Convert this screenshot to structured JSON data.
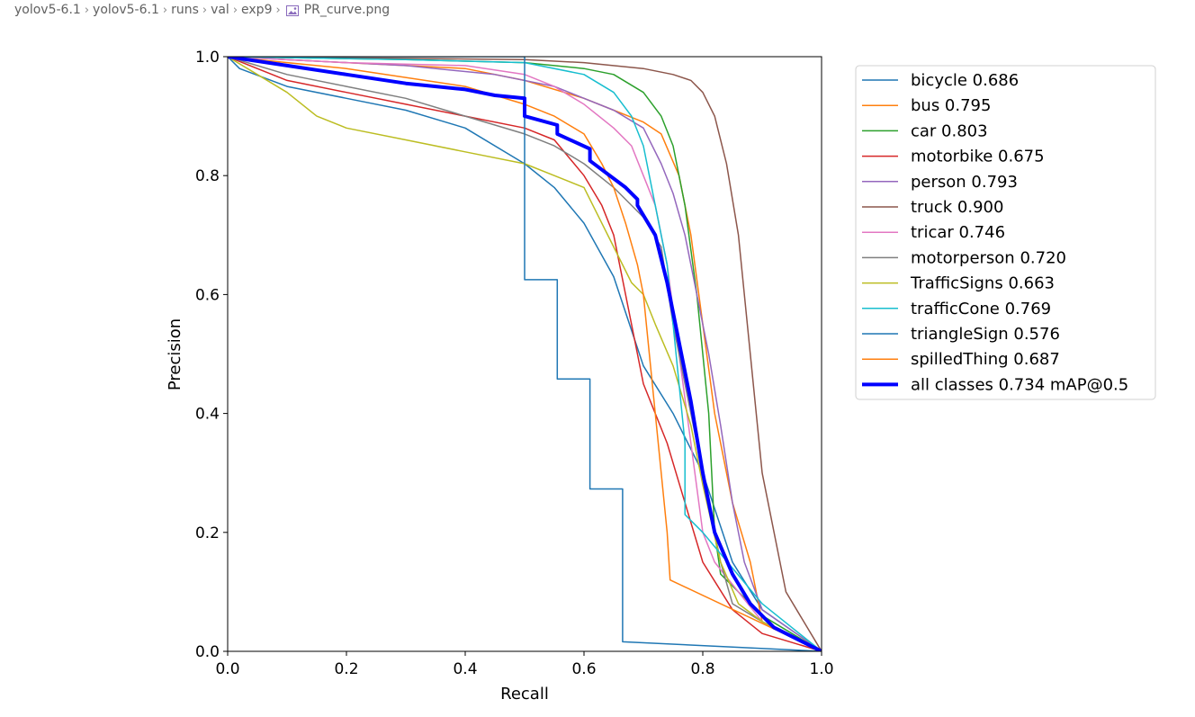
{
  "breadcrumb": {
    "items": [
      "yolov5-6.1",
      "yolov5-6.1",
      "runs",
      "val",
      "exp9"
    ],
    "file": "PR_curve.png",
    "file_icon": "image-file-icon"
  },
  "chart_data": {
    "type": "line",
    "xlabel": "Recall",
    "ylabel": "Precision",
    "xlim": [
      0,
      1
    ],
    "ylim": [
      0,
      1
    ],
    "xticks": [
      "0.0",
      "0.2",
      "0.4",
      "0.6",
      "0.8",
      "1.0"
    ],
    "yticks": [
      "0.0",
      "0.2",
      "0.4",
      "0.6",
      "0.8",
      "1.0"
    ],
    "grid": false,
    "legend_position": "outside-right-top",
    "series": [
      {
        "name": "bicycle 0.686",
        "color": "#1f77b4",
        "width": 1.5,
        "points": [
          [
            0,
            1
          ],
          [
            0.02,
            0.98
          ],
          [
            0.1,
            0.95
          ],
          [
            0.2,
            0.93
          ],
          [
            0.3,
            0.91
          ],
          [
            0.4,
            0.88
          ],
          [
            0.5,
            0.82
          ],
          [
            0.55,
            0.78
          ],
          [
            0.6,
            0.72
          ],
          [
            0.65,
            0.63
          ],
          [
            0.7,
            0.48
          ],
          [
            0.75,
            0.4
          ],
          [
            0.8,
            0.3
          ],
          [
            0.85,
            0.15
          ],
          [
            0.9,
            0.07
          ],
          [
            1.0,
            0
          ]
        ]
      },
      {
        "name": "bus 0.795",
        "color": "#ff7f0e",
        "width": 1.5,
        "points": [
          [
            0,
            1
          ],
          [
            0.2,
            0.99
          ],
          [
            0.4,
            0.98
          ],
          [
            0.5,
            0.96
          ],
          [
            0.6,
            0.93
          ],
          [
            0.65,
            0.91
          ],
          [
            0.7,
            0.89
          ],
          [
            0.73,
            0.87
          ],
          [
            0.76,
            0.8
          ],
          [
            0.78,
            0.7
          ],
          [
            0.8,
            0.55
          ],
          [
            0.82,
            0.4
          ],
          [
            0.85,
            0.25
          ],
          [
            0.88,
            0.15
          ],
          [
            0.9,
            0.05
          ],
          [
            1.0,
            0
          ]
        ]
      },
      {
        "name": "car 0.803",
        "color": "#2ca02c",
        "width": 1.5,
        "points": [
          [
            0,
            1
          ],
          [
            0.3,
            0.995
          ],
          [
            0.5,
            0.99
          ],
          [
            0.6,
            0.98
          ],
          [
            0.65,
            0.97
          ],
          [
            0.7,
            0.94
          ],
          [
            0.73,
            0.9
          ],
          [
            0.75,
            0.85
          ],
          [
            0.77,
            0.75
          ],
          [
            0.79,
            0.6
          ],
          [
            0.81,
            0.4
          ],
          [
            0.82,
            0.2
          ],
          [
            0.83,
            0.13
          ],
          [
            0.9,
            0.06
          ],
          [
            1.0,
            0
          ]
        ]
      },
      {
        "name": "motorbike 0.675",
        "color": "#d62728",
        "width": 1.5,
        "points": [
          [
            0,
            1
          ],
          [
            0.1,
            0.96
          ],
          [
            0.2,
            0.94
          ],
          [
            0.3,
            0.92
          ],
          [
            0.4,
            0.9
          ],
          [
            0.5,
            0.88
          ],
          [
            0.55,
            0.86
          ],
          [
            0.6,
            0.8
          ],
          [
            0.63,
            0.75
          ],
          [
            0.65,
            0.7
          ],
          [
            0.67,
            0.6
          ],
          [
            0.69,
            0.5
          ],
          [
            0.7,
            0.45
          ],
          [
            0.72,
            0.4
          ],
          [
            0.74,
            0.35
          ],
          [
            0.77,
            0.25
          ],
          [
            0.8,
            0.15
          ],
          [
            0.85,
            0.07
          ],
          [
            0.9,
            0.03
          ],
          [
            1.0,
            0
          ]
        ]
      },
      {
        "name": "person 0.793",
        "color": "#9467bd",
        "width": 1.5,
        "points": [
          [
            0,
            1
          ],
          [
            0.3,
            0.985
          ],
          [
            0.45,
            0.97
          ],
          [
            0.55,
            0.95
          ],
          [
            0.6,
            0.93
          ],
          [
            0.65,
            0.91
          ],
          [
            0.7,
            0.88
          ],
          [
            0.73,
            0.82
          ],
          [
            0.75,
            0.77
          ],
          [
            0.77,
            0.7
          ],
          [
            0.79,
            0.6
          ],
          [
            0.81,
            0.5
          ],
          [
            0.83,
            0.38
          ],
          [
            0.85,
            0.25
          ],
          [
            0.87,
            0.15
          ],
          [
            0.9,
            0.07
          ],
          [
            1.0,
            0
          ]
        ]
      },
      {
        "name": "truck 0.900",
        "color": "#8c564b",
        "width": 1.5,
        "points": [
          [
            0,
            1
          ],
          [
            0.5,
            0.995
          ],
          [
            0.6,
            0.99
          ],
          [
            0.7,
            0.98
          ],
          [
            0.75,
            0.97
          ],
          [
            0.78,
            0.96
          ],
          [
            0.8,
            0.94
          ],
          [
            0.82,
            0.9
          ],
          [
            0.84,
            0.82
          ],
          [
            0.86,
            0.7
          ],
          [
            0.88,
            0.5
          ],
          [
            0.9,
            0.3
          ],
          [
            0.93,
            0.15
          ],
          [
            0.94,
            0.1
          ],
          [
            1.0,
            0
          ]
        ]
      },
      {
        "name": "tricar 0.746",
        "color": "#e377c2",
        "width": 1.5,
        "points": [
          [
            0,
            1
          ],
          [
            0.2,
            0.99
          ],
          [
            0.4,
            0.985
          ],
          [
            0.5,
            0.97
          ],
          [
            0.55,
            0.95
          ],
          [
            0.6,
            0.92
          ],
          [
            0.65,
            0.88
          ],
          [
            0.68,
            0.85
          ],
          [
            0.7,
            0.8
          ],
          [
            0.72,
            0.75
          ],
          [
            0.74,
            0.65
          ],
          [
            0.76,
            0.5
          ],
          [
            0.78,
            0.35
          ],
          [
            0.8,
            0.2
          ],
          [
            0.82,
            0.15
          ],
          [
            0.9,
            0.05
          ],
          [
            1.0,
            0
          ]
        ]
      },
      {
        "name": "motorperson 0.720",
        "color": "#7f7f7f",
        "width": 1.5,
        "points": [
          [
            0,
            1
          ],
          [
            0.1,
            0.97
          ],
          [
            0.2,
            0.95
          ],
          [
            0.3,
            0.93
          ],
          [
            0.4,
            0.9
          ],
          [
            0.5,
            0.87
          ],
          [
            0.55,
            0.85
          ],
          [
            0.6,
            0.82
          ],
          [
            0.65,
            0.78
          ],
          [
            0.7,
            0.73
          ],
          [
            0.73,
            0.68
          ],
          [
            0.75,
            0.55
          ],
          [
            0.77,
            0.45
          ],
          [
            0.79,
            0.35
          ],
          [
            0.81,
            0.25
          ],
          [
            0.83,
            0.15
          ],
          [
            0.85,
            0.08
          ],
          [
            0.9,
            0.05
          ],
          [
            1.0,
            0
          ]
        ]
      },
      {
        "name": "TrafficSigns 0.663",
        "color": "#bcbd22",
        "width": 1.5,
        "points": [
          [
            0,
            1
          ],
          [
            0.05,
            0.97
          ],
          [
            0.1,
            0.94
          ],
          [
            0.15,
            0.9
          ],
          [
            0.2,
            0.88
          ],
          [
            0.3,
            0.86
          ],
          [
            0.4,
            0.84
          ],
          [
            0.5,
            0.82
          ],
          [
            0.55,
            0.8
          ],
          [
            0.6,
            0.78
          ],
          [
            0.63,
            0.72
          ],
          [
            0.65,
            0.68
          ],
          [
            0.68,
            0.62
          ],
          [
            0.7,
            0.6
          ],
          [
            0.72,
            0.55
          ],
          [
            0.75,
            0.48
          ],
          [
            0.78,
            0.38
          ],
          [
            0.8,
            0.28
          ],
          [
            0.83,
            0.15
          ],
          [
            0.86,
            0.08
          ],
          [
            0.9,
            0.05
          ],
          [
            1.0,
            0
          ]
        ]
      },
      {
        "name": "trafficCone 0.769",
        "color": "#17becf",
        "width": 1.5,
        "points": [
          [
            0,
            1
          ],
          [
            0.3,
            0.995
          ],
          [
            0.5,
            0.99
          ],
          [
            0.6,
            0.97
          ],
          [
            0.65,
            0.94
          ],
          [
            0.68,
            0.9
          ],
          [
            0.7,
            0.85
          ],
          [
            0.72,
            0.75
          ],
          [
            0.74,
            0.65
          ],
          [
            0.75,
            0.55
          ],
          [
            0.76,
            0.45
          ],
          [
            0.77,
            0.35
          ],
          [
            0.77,
            0.23
          ],
          [
            0.8,
            0.2
          ],
          [
            0.85,
            0.14
          ],
          [
            0.9,
            0.08
          ],
          [
            1.0,
            0
          ]
        ]
      },
      {
        "name": "triangleSign 0.576",
        "color": "#1f77b4",
        "width": 1.5,
        "points": [
          [
            0,
            1
          ],
          [
            0.5,
            1
          ],
          [
            0.5,
            0.625
          ],
          [
            0.555,
            0.625
          ],
          [
            0.555,
            0.458
          ],
          [
            0.61,
            0.458
          ],
          [
            0.61,
            0.273
          ],
          [
            0.665,
            0.273
          ],
          [
            0.665,
            0.016
          ],
          [
            1.0,
            0
          ]
        ]
      },
      {
        "name": "spilledThing 0.687",
        "color": "#ff7f0e",
        "width": 1.5,
        "points": [
          [
            0,
            1
          ],
          [
            0.2,
            0.98
          ],
          [
            0.4,
            0.95
          ],
          [
            0.5,
            0.92
          ],
          [
            0.55,
            0.9
          ],
          [
            0.6,
            0.87
          ],
          [
            0.63,
            0.82
          ],
          [
            0.65,
            0.78
          ],
          [
            0.67,
            0.72
          ],
          [
            0.69,
            0.65
          ],
          [
            0.7,
            0.6
          ],
          [
            0.71,
            0.5
          ],
          [
            0.72,
            0.4
          ],
          [
            0.73,
            0.3
          ],
          [
            0.74,
            0.2
          ],
          [
            0.745,
            0.12
          ],
          [
            1.0,
            0
          ]
        ]
      },
      {
        "name": "all classes 0.734 mAP@0.5",
        "color": "#0000ff",
        "width": 4,
        "points": [
          [
            0,
            1
          ],
          [
            0.1,
            0.985
          ],
          [
            0.2,
            0.97
          ],
          [
            0.3,
            0.955
          ],
          [
            0.4,
            0.945
          ],
          [
            0.45,
            0.935
          ],
          [
            0.5,
            0.93
          ],
          [
            0.5,
            0.9
          ],
          [
            0.555,
            0.885
          ],
          [
            0.555,
            0.87
          ],
          [
            0.61,
            0.845
          ],
          [
            0.61,
            0.825
          ],
          [
            0.65,
            0.795
          ],
          [
            0.67,
            0.78
          ],
          [
            0.69,
            0.76
          ],
          [
            0.69,
            0.75
          ],
          [
            0.72,
            0.7
          ],
          [
            0.74,
            0.62
          ],
          [
            0.76,
            0.52
          ],
          [
            0.78,
            0.42
          ],
          [
            0.8,
            0.3
          ],
          [
            0.82,
            0.2
          ],
          [
            0.85,
            0.13
          ],
          [
            0.88,
            0.08
          ],
          [
            0.92,
            0.04
          ],
          [
            1.0,
            0
          ]
        ]
      }
    ]
  }
}
